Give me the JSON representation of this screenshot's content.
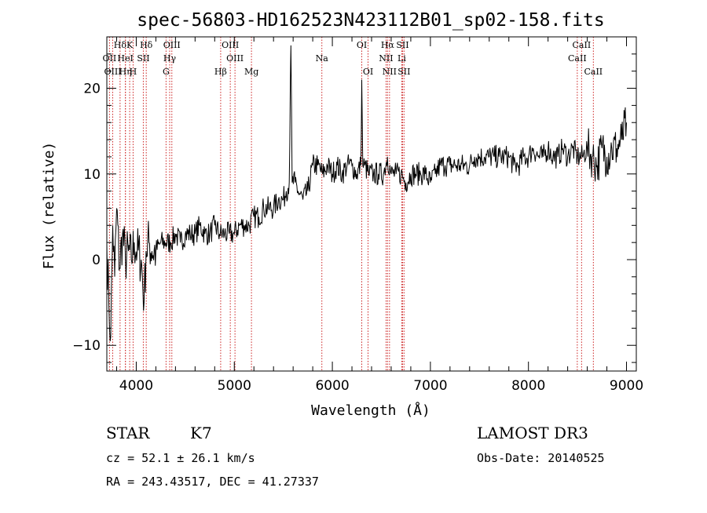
{
  "chart_data": {
    "type": "line",
    "title": "spec-56803-HD162523N423112B01_sp02-158.fits",
    "xlabel": "Wavelength (Å)",
    "ylabel": "Flux (relative)",
    "xlim": [
      3700,
      9100
    ],
    "ylim": [
      -13,
      26
    ],
    "x_ticks": [
      4000,
      5000,
      6000,
      7000,
      8000,
      9000
    ],
    "y_ticks": [
      -10,
      0,
      10,
      20
    ],
    "x_tick_labels": [
      "4000",
      "5000",
      "6000",
      "7000",
      "8000",
      "9000"
    ],
    "y_tick_labels": [
      "−10",
      "0",
      "10",
      "20"
    ],
    "grid": false,
    "series": [
      {
        "x": [
          3700,
          3720,
          3740,
          3760,
          3780,
          3800,
          3830,
          3860,
          3890,
          3920,
          3950,
          3980,
          4010,
          4050,
          4080,
          4100,
          4130,
          4160,
          4200,
          4250,
          4300,
          4350,
          4400,
          4450,
          4500,
          4550,
          4600,
          4650,
          4700,
          4750,
          4800,
          4850,
          4900,
          4950,
          5000,
          5050,
          5100,
          5150,
          5200,
          5250,
          5300,
          5350,
          5400,
          5450,
          5500,
          5530,
          5560,
          5577,
          5590,
          5620,
          5650,
          5700,
          5750,
          5800,
          5850,
          5900,
          5950,
          6000,
          6050,
          6100,
          6150,
          6200,
          6250,
          6290,
          6300,
          6310,
          6330,
          6370,
          6420,
          6470,
          6520,
          6562,
          6600,
          6650,
          6700,
          6750,
          6800,
          6850,
          6900,
          6950,
          7000,
          7050,
          7100,
          7150,
          7200,
          7250,
          7300,
          7350,
          7400,
          7450,
          7500,
          7550,
          7600,
          7650,
          7700,
          7750,
          7800,
          7850,
          7900,
          7950,
          8000,
          8050,
          8100,
          8150,
          8200,
          8250,
          8300,
          8350,
          8400,
          8450,
          8500,
          8550,
          8600,
          8650,
          8700,
          8750,
          8800,
          8850,
          8900,
          8950,
          9000
        ],
        "y": [
          2,
          -5,
          -9,
          4,
          -2,
          6,
          -1,
          3,
          0,
          1,
          0,
          2,
          1,
          0,
          -5,
          1,
          2,
          1,
          1,
          2,
          2,
          2,
          3,
          2,
          3,
          3,
          3,
          4,
          3,
          3,
          4,
          3,
          3,
          3,
          3,
          4,
          4,
          4,
          5,
          5,
          6,
          6,
          6,
          7,
          7,
          8,
          9,
          25,
          9,
          9,
          8,
          7,
          8,
          11,
          11,
          10,
          11,
          10,
          11,
          10,
          11,
          11,
          10,
          11,
          21,
          11,
          11,
          10,
          10,
          10,
          10,
          12,
          10,
          10,
          10,
          9,
          10,
          10,
          10,
          10,
          9,
          10,
          11,
          11,
          11,
          11,
          11,
          11,
          11,
          12,
          12,
          12,
          12,
          12,
          12,
          12,
          12,
          11,
          11,
          12,
          12,
          13,
          12,
          12,
          13,
          12,
          12,
          13,
          12,
          13,
          12,
          12,
          13,
          12,
          11,
          13,
          12,
          13,
          13,
          14,
          16
        ]
      }
    ],
    "lines": [
      {
        "label": "Hδ",
        "wl": 3835,
        "row": 1
      },
      {
        "label": "OII",
        "wl": 3727,
        "row": 2
      },
      {
        "label": "OIII",
        "wl": 3760,
        "row": 3
      },
      {
        "label": "K",
        "wl": 3933,
        "row": 1
      },
      {
        "label": "HeI",
        "wl": 3889,
        "row": 2
      },
      {
        "label": "Hη",
        "wl": 3890,
        "row": 3
      },
      {
        "label": "SII",
        "wl": 4072,
        "row": 2
      },
      {
        "label": "H",
        "wl": 3968,
        "row": 3
      },
      {
        "label": "Hδ",
        "wl": 4102,
        "row": 1
      },
      {
        "label": "OIII",
        "wl": 4363,
        "row": 1
      },
      {
        "label": "Hγ",
        "wl": 4341,
        "row": 2
      },
      {
        "label": "G",
        "wl": 4304,
        "row": 3
      },
      {
        "label": "OIII",
        "wl": 4959,
        "row": 1
      },
      {
        "label": "OIII",
        "wl": 5007,
        "row": 2
      },
      {
        "label": "Hβ",
        "wl": 4861,
        "row": 3
      },
      {
        "label": "Mg",
        "wl": 5175,
        "row": 3
      },
      {
        "label": "Na",
        "wl": 5893,
        "row": 2
      },
      {
        "label": "OI",
        "wl": 6300,
        "row": 1
      },
      {
        "label": "OI",
        "wl": 6364,
        "row": 3
      },
      {
        "label": "Hα",
        "wl": 6563,
        "row": 1
      },
      {
        "label": "NII",
        "wl": 6548,
        "row": 2
      },
      {
        "label": "NII",
        "wl": 6583,
        "row": 3
      },
      {
        "label": "SII",
        "wl": 6716,
        "row": 1
      },
      {
        "label": "Li",
        "wl": 6708,
        "row": 2
      },
      {
        "label": "SII",
        "wl": 6731,
        "row": 3
      },
      {
        "label": "CaII",
        "wl": 8542,
        "row": 1
      },
      {
        "label": "CaII",
        "wl": 8498,
        "row": 2
      },
      {
        "label": "CaII",
        "wl": 8662,
        "row": 3
      }
    ]
  },
  "info": {
    "object_class": "STAR",
    "subclass": "K7",
    "survey": "LAMOST DR3",
    "cz": "cz = 52.1 ± 26.1 km/s",
    "obs_date": "Obs-Date: 20140525",
    "coords": "RA = 243.43517, DEC =  41.27337"
  },
  "colors": {
    "spectrum": "#000000",
    "line_marker": "#cc2222"
  }
}
